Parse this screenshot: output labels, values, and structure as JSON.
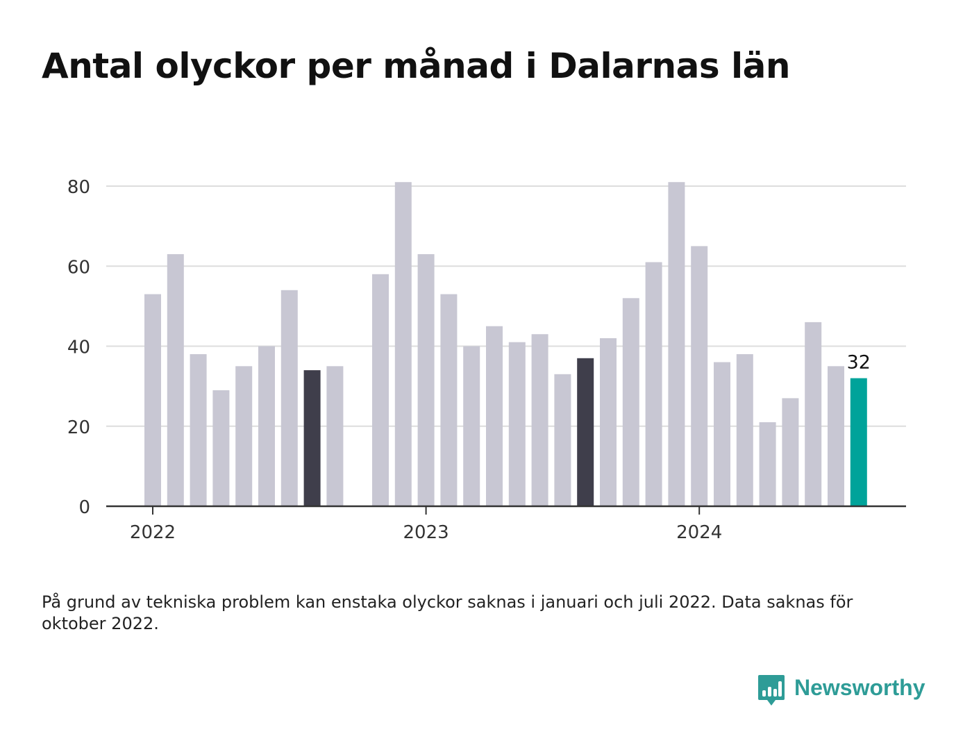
{
  "title": "Antal olyckor per månad i Dalarnas län",
  "note": "På grund av tekniska problem kan enstaka olyckor saknas i januari och juli 2022. Data saknas för oktober 2022.",
  "brand": {
    "name": "Newsworthy",
    "color": "#2e9c97",
    "icon": "bar-chart-speech-bubble-icon"
  },
  "colors": {
    "bar_default": "#c8c7d3",
    "bar_highlight_dark": "#3f3e4b",
    "bar_latest": "#00a39a",
    "grid": "#dddddd",
    "axis": "#333333"
  },
  "chart_data": {
    "type": "bar",
    "title": "Antal olyckor per månad i Dalarnas län",
    "xlabel": "",
    "ylabel": "",
    "ylim": [
      0,
      80
    ],
    "yticks": [
      0,
      20,
      40,
      60,
      80
    ],
    "x_tick_labels": [
      {
        "label": "2022",
        "month": "2022-01"
      },
      {
        "label": "2023",
        "month": "2023-01"
      },
      {
        "label": "2024",
        "month": "2024-01"
      }
    ],
    "months": [
      "2022-01",
      "2022-02",
      "2022-03",
      "2022-04",
      "2022-05",
      "2022-06",
      "2022-07",
      "2022-08",
      "2022-09",
      "2022-10",
      "2022-11",
      "2022-12",
      "2023-01",
      "2023-02",
      "2023-03",
      "2023-04",
      "2023-05",
      "2023-06",
      "2023-07",
      "2023-08",
      "2023-09",
      "2023-10",
      "2023-11",
      "2023-12",
      "2024-01",
      "2024-02",
      "2024-03",
      "2024-04",
      "2024-05",
      "2024-06",
      "2024-07",
      "2024-08"
    ],
    "values": [
      53,
      63,
      38,
      29,
      35,
      40,
      54,
      34,
      35,
      null,
      58,
      81,
      63,
      53,
      40,
      45,
      41,
      43,
      33,
      37,
      42,
      52,
      61,
      81,
      65,
      36,
      38,
      21,
      27,
      46,
      35,
      32
    ],
    "highlight": {
      "dark": [
        "2022-08",
        "2023-08"
      ],
      "latest": "2024-08"
    },
    "data_labels": [
      {
        "month": "2024-08",
        "text": "32"
      }
    ],
    "grid": true,
    "legend": "none"
  }
}
